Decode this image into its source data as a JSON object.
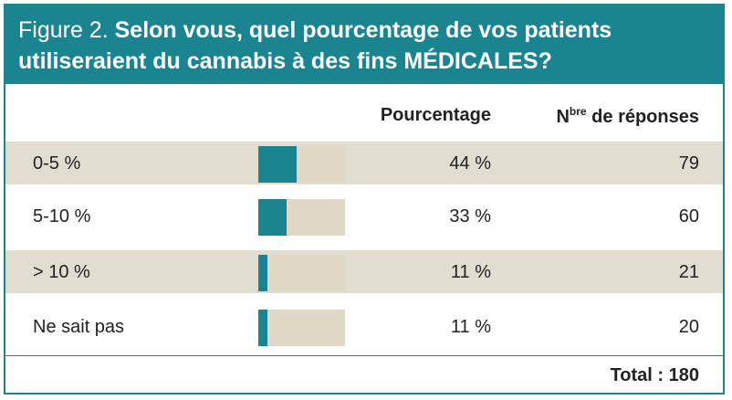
{
  "figure": {
    "label": "Figure 2.",
    "title": "Selon vous, quel pourcentage de vos patients utiliseraient du cannabis à des fins MÉDICALES?"
  },
  "columns": {
    "percentage": "Pourcentage",
    "count_prefix": "N",
    "count_sup": "bre",
    "count_suffix": " de réponses"
  },
  "total_label": "Total : 180",
  "colors": {
    "accent": "#1a8591",
    "bar_bg": "#ded8c5",
    "row_shade": "#e1ddd0"
  },
  "chart_data": {
    "type": "table",
    "categories": [
      "0-5 %",
      "5-10 %",
      "> 10 %",
      "Ne sait pas"
    ],
    "series": [
      {
        "name": "Pourcentage",
        "values": [
          44,
          33,
          11,
          11
        ]
      },
      {
        "name": "Nbre de réponses",
        "values": [
          79,
          60,
          21,
          20
        ]
      }
    ],
    "rows": [
      {
        "label": "0-5 %",
        "pct": 44,
        "pct_text": "44 %",
        "n": "79"
      },
      {
        "label": "5-10 %",
        "pct": 33,
        "pct_text": "33 %",
        "n": "60"
      },
      {
        "label": "> 10 %",
        "pct": 11,
        "pct_text": "11 %",
        "n": "21"
      },
      {
        "label": "Ne sait pas",
        "pct": 11,
        "pct_text": "11 %",
        "n": "20"
      }
    ],
    "total": 180
  }
}
